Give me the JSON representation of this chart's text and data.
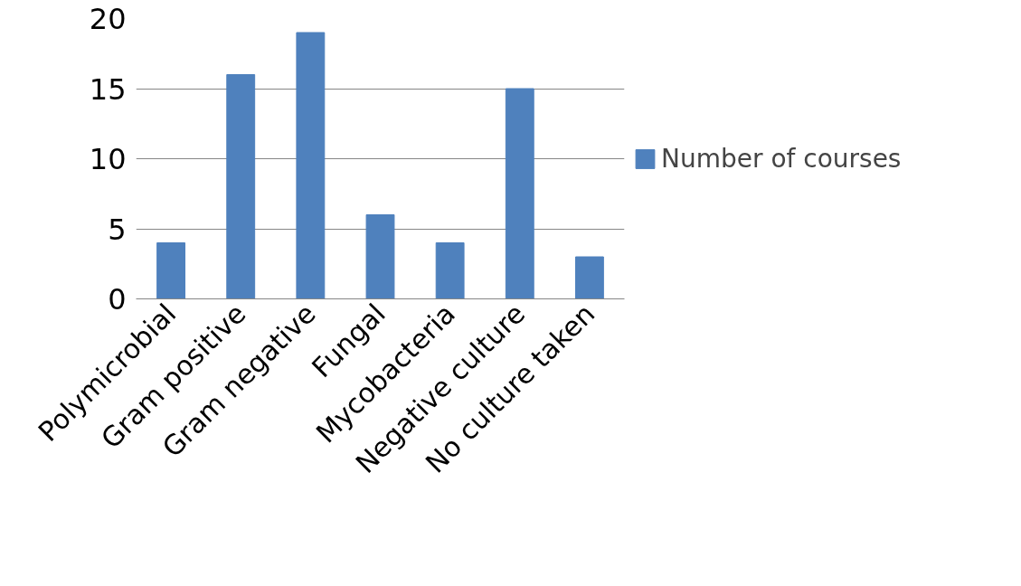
{
  "chart_data": {
    "type": "bar",
    "categories": [
      "Polymicrobial",
      "Gram positive",
      "Gram negative",
      "Fungal",
      "Mycobacteria",
      "Negative culture",
      "No culture taken"
    ],
    "series": [
      {
        "name": "Number of courses",
        "color": "#4f81bd",
        "values": [
          4,
          16,
          19,
          6,
          4,
          15,
          3
        ]
      }
    ],
    "ylim": [
      0,
      20
    ],
    "yticks": [
      0,
      5,
      10,
      15,
      20
    ],
    "grid": "y",
    "legend": "right"
  }
}
